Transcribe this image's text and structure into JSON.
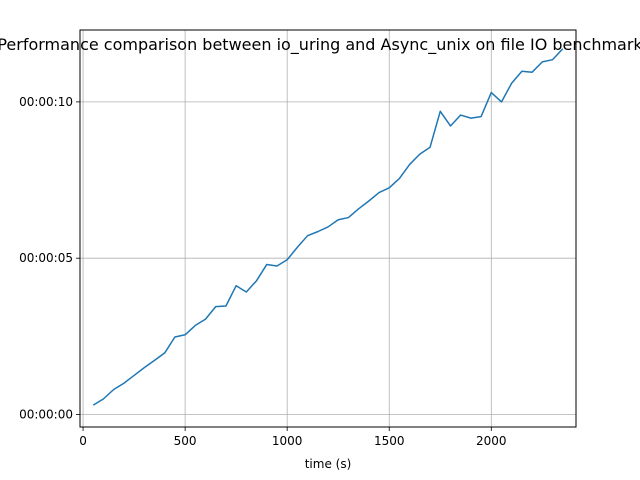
{
  "chart_data": {
    "type": "line",
    "title": "Performance comparison between io_uring and Async_unix on file IO benchmark",
    "xlabel": "time (s)",
    "ylabel": "",
    "xlim": [
      -15,
      2415
    ],
    "ylim": [
      -0.4,
      12.3
    ],
    "x_ticks": [
      0,
      500,
      1000,
      1500,
      2000
    ],
    "x_tick_labels": [
      "0",
      "500",
      "1000",
      "1500",
      "2000"
    ],
    "y_ticks": [
      0,
      5,
      10
    ],
    "y_tick_labels": [
      "00:00:00",
      "00:00:05",
      "00:00:10"
    ],
    "grid": true,
    "legend": "none",
    "line_color": "#1f77b4",
    "series": [
      {
        "x": [
          50,
          100,
          150,
          200,
          250,
          300,
          350,
          400,
          450,
          500,
          550,
          600,
          650,
          700,
          750,
          800,
          850,
          900,
          950,
          1000,
          1050,
          1100,
          1150,
          1200,
          1250,
          1300,
          1350,
          1400,
          1450,
          1500,
          1550,
          1600,
          1650,
          1700,
          1750,
          1800,
          1850,
          1900,
          1950,
          2000,
          2050,
          2100,
          2150,
          2200,
          2250,
          2300,
          2350
        ],
        "values": [
          0.3,
          0.5,
          0.8,
          1.0,
          1.25,
          1.5,
          1.73,
          1.97,
          2.48,
          2.55,
          2.85,
          3.05,
          3.45,
          3.47,
          4.12,
          3.92,
          4.28,
          4.8,
          4.75,
          4.95,
          5.35,
          5.72,
          5.85,
          6.0,
          6.23,
          6.3,
          6.58,
          6.83,
          7.1,
          7.25,
          7.55,
          8.0,
          8.33,
          8.55,
          9.7,
          9.23,
          9.58,
          9.48,
          9.53,
          10.3,
          10.0,
          10.6,
          10.98,
          10.95,
          11.28,
          11.35,
          11.7
        ]
      }
    ]
  }
}
